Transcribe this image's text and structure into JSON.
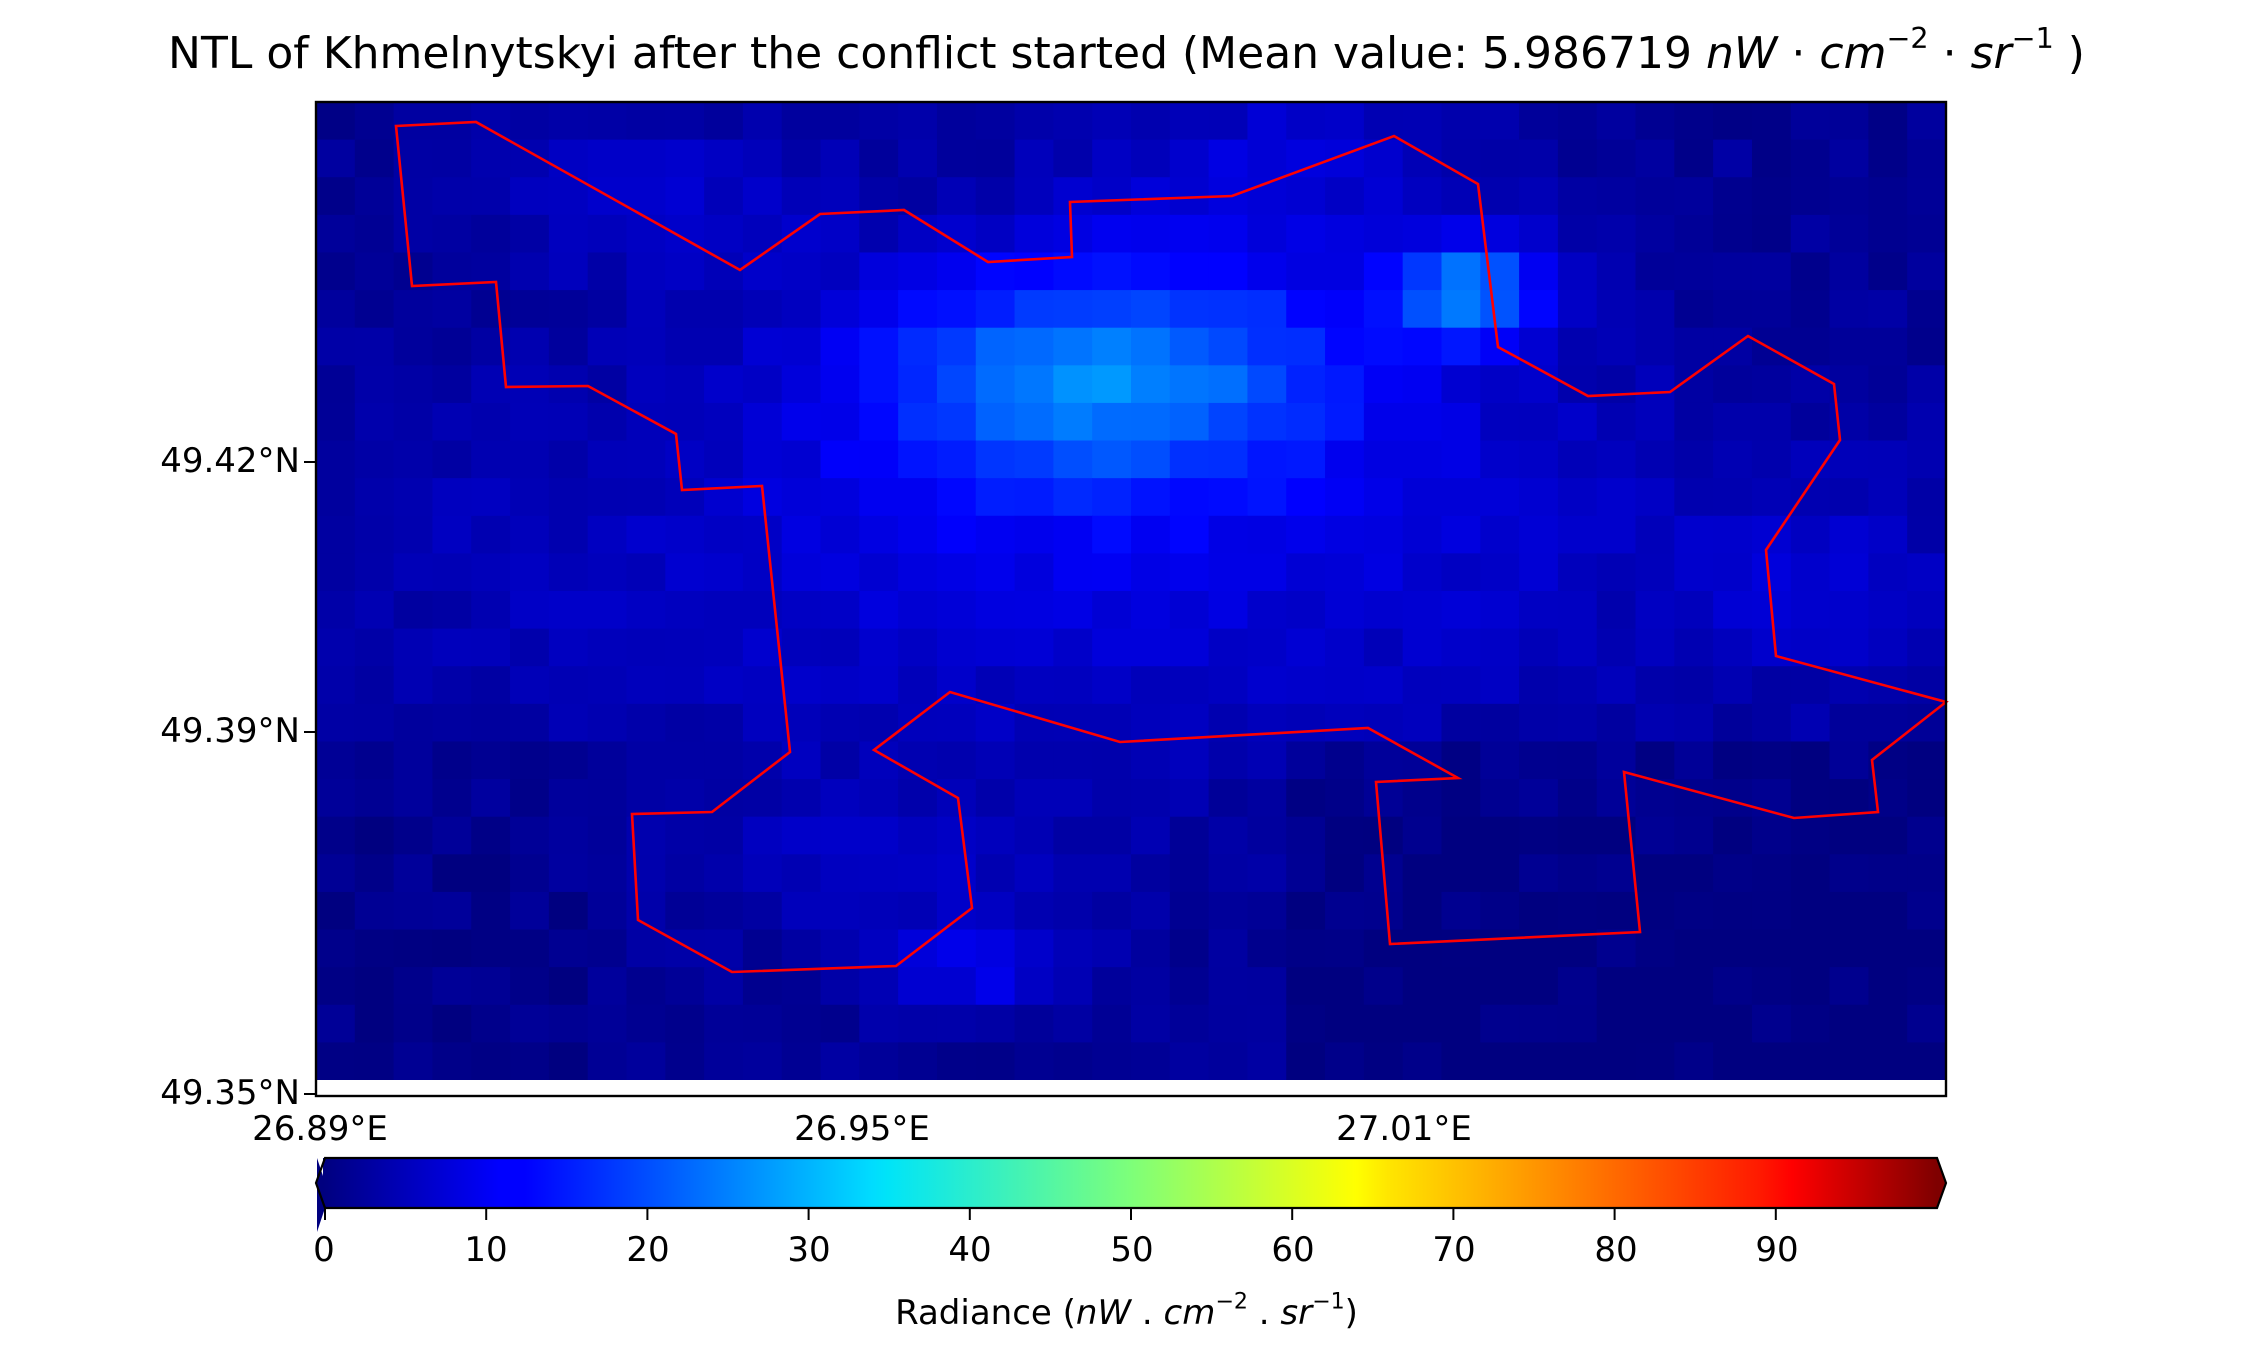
{
  "chart_data": {
    "type": "heatmap",
    "title": {
      "prefix": "NTL of Khmelnytskyi after the conflict started (Mean value: ",
      "mean_value": "5.986719",
      "unit_nW": "nW",
      "dot": "·",
      "unit_cm": "cm",
      "exp_cm": "−2",
      "unit_sr": "sr",
      "exp_sr": "−1",
      "suffix": " )"
    },
    "lat_ticks": [
      "49.42°N",
      "49.39°N",
      "49.35°N"
    ],
    "lat_tick_values": [
      49.42,
      49.39,
      49.35
    ],
    "lon_ticks": [
      "26.89°E",
      "26.95°E",
      "27.01°E"
    ],
    "lon_tick_values": [
      26.89,
      26.95,
      27.01
    ],
    "lon_range": [
      26.89,
      27.07
    ],
    "lat_range": [
      49.35,
      49.46
    ],
    "colormap": "jet",
    "color_range": [
      0,
      100
    ],
    "colorbar": {
      "ticks": [
        "0",
        "10",
        "20",
        "30",
        "40",
        "50",
        "60",
        "70",
        "80",
        "90"
      ],
      "label": {
        "prefix": "Radiance (",
        "unit_nW": "nW",
        "sep": " . ",
        "unit_cm": "cm",
        "exp_cm": "−2",
        "unit_sr": "sr",
        "exp_sr": "−1",
        "suffix": ")"
      },
      "extend": "both"
    },
    "boundary_color": "#ff0000",
    "grid": false
  }
}
